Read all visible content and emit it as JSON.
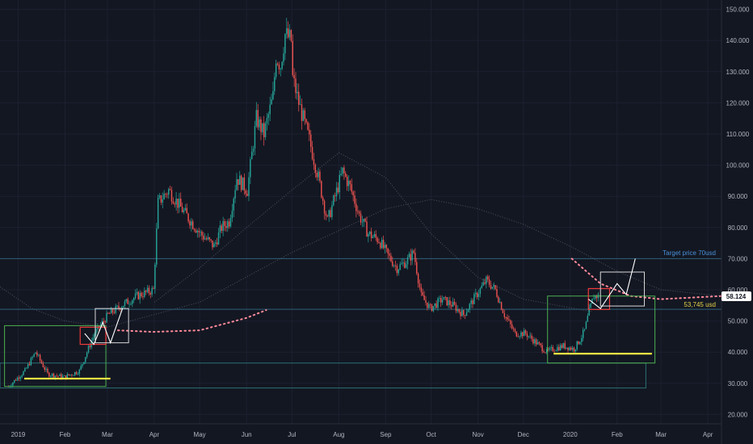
{
  "colors": {
    "background": "#131722",
    "grid": "#1c2030",
    "up": "#26a69a",
    "down": "#ef5350",
    "level_line": "#2f5f78",
    "target_label": "#4a90d9",
    "support_label": "#e6d34a",
    "price_tag_bg": "#ffffff",
    "price_tag_text": "#131722",
    "green_box": "#4caf50",
    "red_box": "#ef3b3b",
    "white_box": "#d8d8d8",
    "yellow_line": "#f4e642",
    "teal_box": "#2a6f73",
    "projection_dots": "#ff8a9a"
  },
  "annotations": {
    "target_label": "Target price 70usd",
    "support_label": "53,745 usd",
    "last_price": "58.124"
  },
  "chart_data": {
    "type": "candlestick",
    "title": "",
    "xlabel": "",
    "ylabel": "",
    "ylim": [
      17,
      153
    ],
    "y_ticks": [
      "20.000",
      "30.000",
      "40.000",
      "50.000",
      "60.000",
      "70.000",
      "80.000",
      "90.000",
      "100.000",
      "110.000",
      "120.000",
      "130.000",
      "140.000",
      "150.000"
    ],
    "y_tick_values": [
      20,
      30,
      40,
      50,
      60,
      70,
      80,
      90,
      100,
      110,
      120,
      130,
      140,
      150
    ],
    "x_ticks": [
      "2019",
      "Feb",
      "Mar",
      "Apr",
      "May",
      "Jun",
      "Jul",
      "Aug",
      "Sep",
      "Oct",
      "Nov",
      "Dec",
      "2020",
      "Feb",
      "Mar",
      "Apr"
    ],
    "x_tick_dates": [
      "2019-01-01",
      "2019-02-01",
      "2019-03-01",
      "2019-04-01",
      "2019-05-01",
      "2019-06-01",
      "2019-07-01",
      "2019-08-01",
      "2019-09-01",
      "2019-10-01",
      "2019-11-01",
      "2019-12-01",
      "2020-01-01",
      "2020-02-01",
      "2020-03-01",
      "2020-04-01"
    ],
    "x_range": [
      "2018-12-20",
      "2020-04-10"
    ],
    "grid": true,
    "price_path": [
      [
        "2018-12-25",
        29
      ],
      [
        "2019-01-05",
        34
      ],
      [
        "2019-01-12",
        40
      ],
      [
        "2019-01-20",
        33
      ],
      [
        "2019-01-31",
        32
      ],
      [
        "2019-02-10",
        34
      ],
      [
        "2019-02-20",
        46
      ],
      [
        "2019-03-01",
        52
      ],
      [
        "2019-03-10",
        55
      ],
      [
        "2019-03-20",
        58
      ],
      [
        "2019-03-31",
        60
      ],
      [
        "2019-04-03",
        88
      ],
      [
        "2019-04-10",
        92
      ],
      [
        "2019-04-20",
        85
      ],
      [
        "2019-05-01",
        78
      ],
      [
        "2019-05-10",
        74
      ],
      [
        "2019-05-15",
        80
      ],
      [
        "2019-05-20",
        82
      ],
      [
        "2019-05-25",
        96
      ],
      [
        "2019-06-01",
        92
      ],
      [
        "2019-06-07",
        115
      ],
      [
        "2019-06-12",
        110
      ],
      [
        "2019-06-18",
        122
      ],
      [
        "2019-06-20",
        135
      ],
      [
        "2019-06-23",
        132
      ],
      [
        "2019-06-26",
        142
      ],
      [
        "2019-06-30",
        140
      ],
      [
        "2019-07-01",
        128
      ],
      [
        "2019-07-05",
        120
      ],
      [
        "2019-07-12",
        108
      ],
      [
        "2019-07-18",
        96
      ],
      [
        "2019-07-24",
        82
      ],
      [
        "2019-07-29",
        90
      ],
      [
        "2019-08-03",
        98
      ],
      [
        "2019-08-08",
        93
      ],
      [
        "2019-08-14",
        84
      ],
      [
        "2019-08-20",
        78
      ],
      [
        "2019-08-27",
        76
      ],
      [
        "2019-09-02",
        71
      ],
      [
        "2019-09-08",
        67
      ],
      [
        "2019-09-14",
        69
      ],
      [
        "2019-09-19",
        72
      ],
      [
        "2019-09-24",
        58
      ],
      [
        "2019-09-30",
        54
      ],
      [
        "2019-10-08",
        57
      ],
      [
        "2019-10-15",
        55
      ],
      [
        "2019-10-22",
        52
      ],
      [
        "2019-10-30",
        58
      ],
      [
        "2019-11-06",
        63
      ],
      [
        "2019-11-12",
        60
      ],
      [
        "2019-11-18",
        52
      ],
      [
        "2019-11-25",
        46
      ],
      [
        "2019-12-02",
        46
      ],
      [
        "2019-12-09",
        43
      ],
      [
        "2019-12-16",
        40
      ],
      [
        "2019-12-20",
        41
      ],
      [
        "2019-12-27",
        42
      ],
      [
        "2020-01-03",
        41
      ],
      [
        "2020-01-07",
        44
      ],
      [
        "2020-01-10",
        47
      ],
      [
        "2020-01-13",
        53
      ],
      [
        "2020-01-16",
        58
      ],
      [
        "2020-01-19",
        58
      ]
    ],
    "horizontal_levels": [
      {
        "label": "Target price 70usd",
        "value": 70,
        "from": "2018-12-20",
        "to": "2020-04-10"
      },
      {
        "label": "53,745 usd",
        "value": 53.745,
        "from": "2018-12-20",
        "to": "2020-04-10"
      }
    ],
    "last_price": 58.124,
    "boxes": [
      {
        "kind": "green",
        "x0": "2018-12-23",
        "x1": "2019-02-28",
        "y0": 29,
        "y1": 48.5
      },
      {
        "kind": "red",
        "x0": "2019-02-11",
        "x1": "2019-02-28",
        "y0": 42.5,
        "y1": 48
      },
      {
        "kind": "white",
        "x0": "2019-02-21",
        "x1": "2019-03-15",
        "y0": 43,
        "y1": 54
      },
      {
        "kind": "teal",
        "x0": "2018-12-20",
        "x1": "2020-02-20",
        "y0": 28.5,
        "y1": 36.5
      },
      {
        "kind": "green",
        "x0": "2019-12-17",
        "x1": "2020-02-26",
        "y0": 36.5,
        "y1": 58
      },
      {
        "kind": "red",
        "x0": "2020-01-13",
        "x1": "2020-01-27",
        "y0": 53.7,
        "y1": 60.4
      },
      {
        "kind": "white",
        "x0": "2020-01-21",
        "x1": "2020-02-19",
        "y0": 54.8,
        "y1": 65.7
      }
    ],
    "yellow_lines": [
      {
        "x0": "2019-01-05",
        "x1": "2019-03-03",
        "y": 31.5
      },
      {
        "x0": "2019-12-21",
        "x1": "2020-02-24",
        "y": 39.5
      }
    ],
    "zigzags": [
      [
        [
          "2019-02-14",
          46
        ],
        [
          "2019-02-20",
          42.5
        ],
        [
          "2019-02-26",
          49.5
        ],
        [
          "2019-03-03",
          43
        ],
        [
          "2019-03-11",
          54
        ]
      ],
      [
        [
          "2020-01-13",
          57
        ],
        [
          "2020-01-21",
          54
        ],
        [
          "2020-02-01",
          62
        ],
        [
          "2020-02-07",
          58.5
        ],
        [
          "2020-02-13",
          70
        ]
      ]
    ],
    "projection_curves": [
      [
        [
          "2019-03-08",
          47
        ],
        [
          "2019-03-31",
          46.5
        ],
        [
          "2019-05-01",
          47
        ],
        [
          "2019-06-01",
          51
        ],
        [
          "2019-06-14",
          53.5
        ]
      ],
      [
        [
          "2020-01-02",
          70
        ],
        [
          "2020-01-21",
          62
        ],
        [
          "2020-02-10",
          58
        ],
        [
          "2020-03-01",
          57
        ],
        [
          "2020-04-10",
          58
        ]
      ]
    ],
    "moving_averages": [
      [
        [
          "2018-12-20",
          61
        ],
        [
          "2019-01-10",
          54
        ],
        [
          "2019-02-01",
          50
        ],
        [
          "2019-03-01",
          48
        ],
        [
          "2019-05-01",
          56
        ],
        [
          "2019-07-01",
          72
        ],
        [
          "2019-09-01",
          86
        ],
        [
          "2019-10-01",
          89
        ],
        [
          "2019-11-01",
          86
        ],
        [
          "2019-12-01",
          81
        ],
        [
          "2020-01-01",
          74
        ],
        [
          "2020-02-01",
          66
        ],
        [
          "2020-03-01",
          60
        ],
        [
          "2020-04-10",
          58
        ]
      ],
      [
        [
          "2019-04-01",
          56
        ],
        [
          "2019-05-01",
          67
        ],
        [
          "2019-06-01",
          80
        ],
        [
          "2019-07-01",
          92
        ],
        [
          "2019-08-01",
          104
        ],
        [
          "2019-09-01",
          96
        ],
        [
          "2019-10-01",
          78
        ],
        [
          "2019-11-01",
          64
        ],
        [
          "2019-12-01",
          57
        ],
        [
          "2020-01-15",
          53
        ]
      ]
    ]
  }
}
